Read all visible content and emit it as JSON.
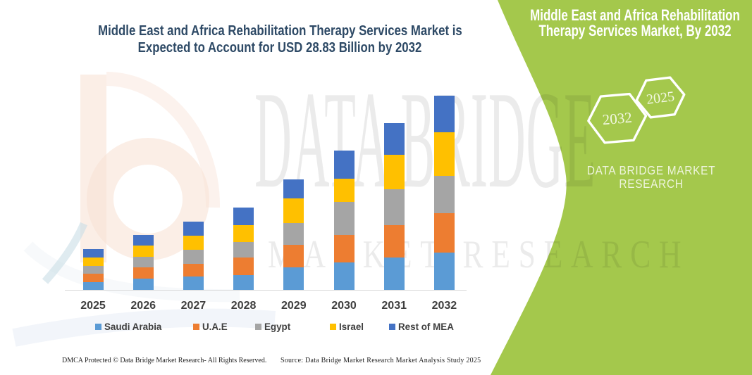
{
  "title": {
    "line1": "Middle East and Africa Rehabilitation Therapy Services Market is",
    "line2": "Expected to Account for USD 28.83 Billion by 2032",
    "color": "#2E4A66"
  },
  "side_panel": {
    "background_color": "#A4C84C",
    "heading_line1": "Middle East and Africa Rehabilitation",
    "heading_line2": "Therapy Services Market, By 2032",
    "hexagon_labels": {
      "front": "2025",
      "back": "2032"
    },
    "brand_line1": "DATA BRIDGE MARKET",
    "brand_line2": "RESEARCH"
  },
  "watermark": {
    "row1": "DATA BRIDGE",
    "row2": "MARKET RESEARCH"
  },
  "footer": {
    "left": "DMCA Protected © Data Bridge Market Research-  All Rights Reserved.",
    "right": "Source: Data Bridge Market Research  Market Analysis Study 2025"
  },
  "chart_data": {
    "type": "bar",
    "stacked": true,
    "unit": "USD Billion",
    "categories": [
      "2025",
      "2026",
      "2027",
      "2028",
      "2029",
      "2030",
      "2031",
      "2032"
    ],
    "series": [
      {
        "name": "Saudi Arabia",
        "color": "#5B9BD5",
        "values": [
          1.21,
          1.75,
          2.04,
          2.2,
          3.33,
          4.1,
          4.81,
          5.57
        ]
      },
      {
        "name": "U.A.E",
        "color": "#ED7D31",
        "values": [
          1.25,
          1.67,
          1.87,
          2.65,
          3.33,
          4.1,
          4.86,
          5.86
        ]
      },
      {
        "name": "Egypt",
        "color": "#A5A5A5",
        "values": [
          1.15,
          1.51,
          2.06,
          2.29,
          3.23,
          4.81,
          5.28,
          5.45
        ]
      },
      {
        "name": "Israel",
        "color": "#FFC000",
        "values": [
          1.25,
          1.73,
          2.1,
          2.51,
          3.64,
          3.52,
          5.1,
          6.44
        ]
      },
      {
        "name": "Rest of MEA",
        "color": "#4472C4",
        "values": [
          1.25,
          1.51,
          2.04,
          2.61,
          2.91,
          4.1,
          4.68,
          5.5
        ]
      }
    ],
    "totals": [
      6.11,
      8.17,
      10.11,
      12.26,
      16.44,
      20.63,
      24.73,
      28.82
    ],
    "xlabel": "",
    "ylabel": "",
    "gridlines": false,
    "legend_position": "bottom"
  }
}
